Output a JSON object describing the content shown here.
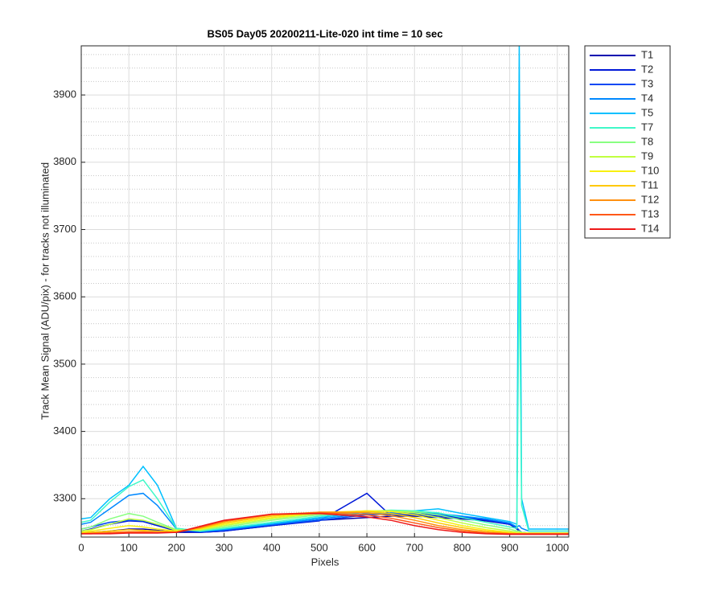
{
  "chart_data": {
    "type": "line",
    "title": "BS05 Day05 20200211-Lite-020 int time = 10 sec",
    "xlabel": "Pixels",
    "ylabel": "Track Mean Signal (ADU/pix) - for tracks not illuminated",
    "x": [
      0,
      20,
      60,
      100,
      130,
      160,
      200,
      250,
      300,
      400,
      500,
      600,
      650,
      700,
      750,
      800,
      850,
      900,
      915,
      920,
      925,
      940,
      1024
    ],
    "series": [
      {
        "name": "T1",
        "color": "#0000b0",
        "values": [
          3250,
          3250,
          3252,
          3255,
          3255,
          3253,
          3250,
          3250,
          3252,
          3260,
          3268,
          3272,
          3274,
          3274,
          3272,
          3270,
          3267,
          3262,
          3255,
          3252,
          3250,
          3248,
          3248
        ]
      },
      {
        "name": "T2",
        "color": "#0018d8",
        "values": [
          3252,
          3255,
          3262,
          3267,
          3266,
          3260,
          3252,
          3250,
          3252,
          3260,
          3267,
          3308,
          3275,
          3276,
          3274,
          3272,
          3268,
          3262,
          3256,
          3252,
          3250,
          3249,
          3249
        ]
      },
      {
        "name": "T3",
        "color": "#0048f4",
        "values": [
          3255,
          3258,
          3265,
          3268,
          3267,
          3262,
          3253,
          3251,
          3253,
          3261,
          3268,
          3276,
          3277,
          3278,
          3276,
          3273,
          3269,
          3263,
          3257,
          3253,
          3250,
          3249,
          3249
        ]
      },
      {
        "name": "T4",
        "color": "#0088ff",
        "values": [
          3262,
          3265,
          3285,
          3305,
          3308,
          3290,
          3255,
          3251,
          3254,
          3262,
          3270,
          3278,
          3279,
          3280,
          3278,
          3274,
          3270,
          3264,
          3258,
          3260,
          3256,
          3252,
          3252
        ]
      },
      {
        "name": "T5",
        "color": "#00c0ff",
        "values": [
          3270,
          3272,
          3300,
          3320,
          3348,
          3320,
          3256,
          3252,
          3255,
          3263,
          3272,
          3280,
          3282,
          3282,
          3285,
          3278,
          3272,
          3266,
          3262,
          3973,
          3300,
          3255,
          3255
        ]
      },
      {
        "name": "T7",
        "color": "#40f8c8",
        "values": [
          3265,
          3268,
          3295,
          3318,
          3328,
          3300,
          3256,
          3252,
          3256,
          3265,
          3274,
          3281,
          3283,
          3282,
          3279,
          3272,
          3265,
          3258,
          3256,
          3655,
          3290,
          3252,
          3252
        ]
      },
      {
        "name": "T8",
        "color": "#88ff80",
        "values": [
          3255,
          3258,
          3270,
          3278,
          3274,
          3265,
          3254,
          3253,
          3258,
          3268,
          3276,
          3281,
          3282,
          3281,
          3276,
          3268,
          3261,
          3255,
          3252,
          3252,
          3250,
          3249,
          3249
        ]
      },
      {
        "name": "T9",
        "color": "#c0ff40",
        "values": [
          3252,
          3254,
          3262,
          3270,
          3268,
          3262,
          3253,
          3254,
          3260,
          3270,
          3278,
          3282,
          3282,
          3279,
          3272,
          3264,
          3257,
          3252,
          3250,
          3250,
          3249,
          3249,
          3249
        ]
      },
      {
        "name": "T10",
        "color": "#f8f010",
        "values": [
          3250,
          3252,
          3256,
          3260,
          3258,
          3255,
          3252,
          3255,
          3262,
          3272,
          3279,
          3282,
          3281,
          3276,
          3268,
          3260,
          3254,
          3250,
          3249,
          3249,
          3249,
          3249,
          3249
        ]
      },
      {
        "name": "T11",
        "color": "#ffc800",
        "values": [
          3249,
          3250,
          3252,
          3254,
          3253,
          3252,
          3251,
          3256,
          3264,
          3274,
          3280,
          3281,
          3278,
          3272,
          3264,
          3257,
          3252,
          3249,
          3248,
          3248,
          3248,
          3248,
          3248
        ]
      },
      {
        "name": "T12",
        "color": "#ff9010",
        "values": [
          3248,
          3249,
          3250,
          3251,
          3251,
          3250,
          3250,
          3257,
          3266,
          3276,
          3280,
          3279,
          3275,
          3268,
          3260,
          3254,
          3250,
          3248,
          3248,
          3248,
          3248,
          3248,
          3248
        ]
      },
      {
        "name": "T13",
        "color": "#ff5818",
        "values": [
          3248,
          3248,
          3249,
          3250,
          3250,
          3250,
          3250,
          3258,
          3267,
          3277,
          3279,
          3276,
          3271,
          3264,
          3257,
          3252,
          3249,
          3248,
          3248,
          3248,
          3248,
          3248,
          3248
        ]
      },
      {
        "name": "T14",
        "color": "#ee1818",
        "values": [
          3248,
          3248,
          3248,
          3249,
          3249,
          3249,
          3250,
          3259,
          3268,
          3277,
          3278,
          3273,
          3268,
          3260,
          3254,
          3250,
          3248,
          3247,
          3247,
          3247,
          3247,
          3247,
          3247
        ]
      }
    ],
    "xlim": [
      0,
      1024
    ],
    "xticks": [
      0,
      100,
      200,
      300,
      400,
      500,
      600,
      700,
      800,
      900,
      1000
    ],
    "ylim": [
      3243,
      3973
    ],
    "yticks": [
      3300,
      3400,
      3500,
      3600,
      3700,
      3800,
      3900
    ],
    "grid": true,
    "minor_grid": true,
    "legend": "outside-right"
  }
}
